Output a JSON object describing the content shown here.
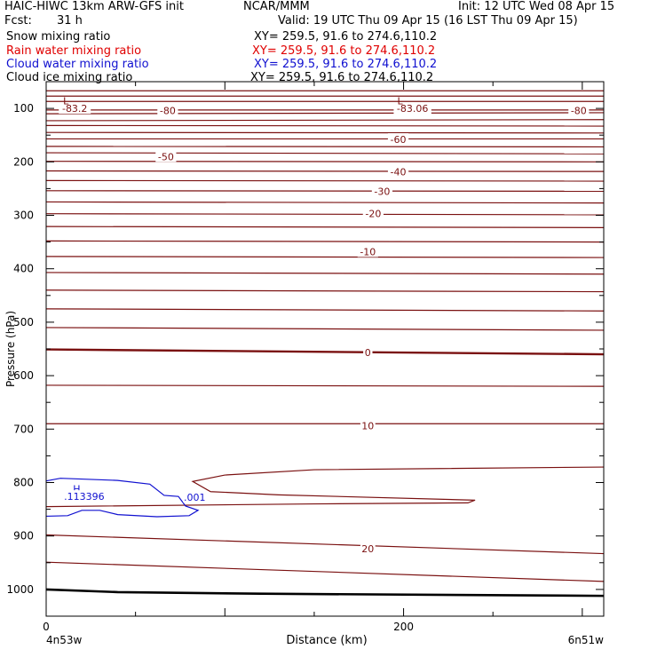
{
  "header": {
    "model": "HAIC-HIWC 13km ARW-GFS init",
    "org": "NCAR/MMM",
    "init": "Init: 12 UTC Wed 08 Apr 15",
    "fcst_label": "Fcst:",
    "fcst_value": "31 h",
    "valid": "Valid: 19 UTC Thu 09 Apr 15 (16 LST Thu 09 Apr 15)"
  },
  "fields": [
    {
      "name": "Snow mixing ratio",
      "xy": "XY= 259.5, 91.6 to 274.6,110.2",
      "color": "#000000"
    },
    {
      "name": "Rain water mixing ratio",
      "xy": "XY= 259.5, 91.6 to 274.6,110.2",
      "color": "#e00000"
    },
    {
      "name": "Cloud water mixing ratio",
      "xy": "XY= 259.5, 91.6 to 274.6,110.2",
      "color": "#1010d0"
    },
    {
      "name": "Cloud ice mixing ratio",
      "xy": "XY= 259.5, 91.6 to 274.6,110.2",
      "color": "#000000"
    }
  ],
  "chart_data": {
    "type": "line",
    "xlabel": "Distance (km)",
    "ylabel": "Pressure (hPa)",
    "xlim": [
      0,
      312
    ],
    "ylim": [
      50,
      1050
    ],
    "x_ticks": [
      0,
      200
    ],
    "y_ticks": [
      100,
      200,
      300,
      400,
      500,
      600,
      700,
      800,
      900,
      1000
    ],
    "left_endpoint": "4n53w",
    "right_endpoint": "6n51w",
    "temp_color": "#7a1010",
    "cloud_color": "#1010d0",
    "temperature_contours": [
      {
        "p": [
          67,
          67
        ],
        "bold": false
      },
      {
        "p": [
          77,
          77
        ],
        "bold": false
      },
      {
        "p": [
          87,
          87
        ],
        "bold": false
      },
      {
        "p": [
          103,
          103
        ],
        "bold": false
      },
      {
        "p": [
          110,
          108
        ],
        "bold": false
      },
      {
        "p": [
          123,
          121
        ],
        "bold": false
      },
      {
        "p": [
          132,
          133
        ],
        "bold": false
      },
      {
        "p": [
          145,
          146
        ],
        "bold": false
      },
      {
        "p": [
          157,
          157
        ],
        "bold": false
      },
      {
        "p": [
          171,
          172
        ],
        "bold": false
      },
      {
        "p": [
          183,
          185
        ],
        "bold": false
      },
      {
        "p": [
          199,
          200
        ],
        "bold": false
      },
      {
        "p": [
          217,
          218
        ],
        "bold": false
      },
      {
        "p": [
          235,
          236
        ],
        "bold": false
      },
      {
        "p": [
          254,
          255
        ],
        "bold": false
      },
      {
        "p": [
          275,
          277
        ],
        "bold": false
      },
      {
        "p": [
          297,
          299
        ],
        "bold": false
      },
      {
        "p": [
          321,
          323
        ],
        "bold": false
      },
      {
        "p": [
          348,
          350
        ],
        "bold": false
      },
      {
        "p": [
          377,
          379
        ],
        "bold": false
      },
      {
        "p": [
          407,
          410
        ],
        "bold": false
      },
      {
        "p": [
          440,
          443
        ],
        "bold": false
      },
      {
        "p": [
          475,
          479
        ],
        "bold": false
      },
      {
        "p": [
          510,
          515
        ],
        "bold": false
      },
      {
        "p": [
          551,
          560
        ],
        "bold": true
      },
      {
        "p": [
          618,
          620
        ],
        "bold": false
      },
      {
        "p": [
          690,
          690
        ],
        "bold": false
      },
      {
        "p": [
          898,
          933
        ],
        "bold": false
      },
      {
        "p": [
          949,
          985
        ],
        "bold": false
      }
    ],
    "temperature_labels": [
      {
        "text": "-83.2",
        "x": 16,
        "p": 100
      },
      {
        "text": "-83.06",
        "x": 205,
        "p": 100
      },
      {
        "text": "-80",
        "x": 68,
        "p": 104
      },
      {
        "text": "-80",
        "x": 298,
        "p": 104
      },
      {
        "text": "-60",
        "x": 197,
        "p": 158
      },
      {
        "text": "-50",
        "x": 67,
        "p": 190
      },
      {
        "text": "-40",
        "x": 197,
        "p": 219
      },
      {
        "text": "-30",
        "x": 188,
        "p": 255
      },
      {
        "text": "-20",
        "x": 183,
        "p": 297
      },
      {
        "text": "-10",
        "x": 180,
        "p": 368
      },
      {
        "text": "0",
        "x": 180,
        "p": 557
      },
      {
        "text": "10",
        "x": 180,
        "p": 694
      },
      {
        "text": "20",
        "x": 180,
        "p": 924
      }
    ],
    "low_markers": [
      {
        "text": "L",
        "x": 11,
        "p": 86
      },
      {
        "text": "L",
        "x": 198,
        "p": 86
      }
    ],
    "cloud_water": {
      "labels": [
        {
          "text": "H",
          "x": 15,
          "p": 812
        },
        {
          "text": ".113396",
          "x": 10,
          "p": 826
        },
        {
          "text": ".001",
          "x": 77,
          "p": 827
        }
      ]
    },
    "surface_pressure": [
      1000,
      1012
    ]
  }
}
